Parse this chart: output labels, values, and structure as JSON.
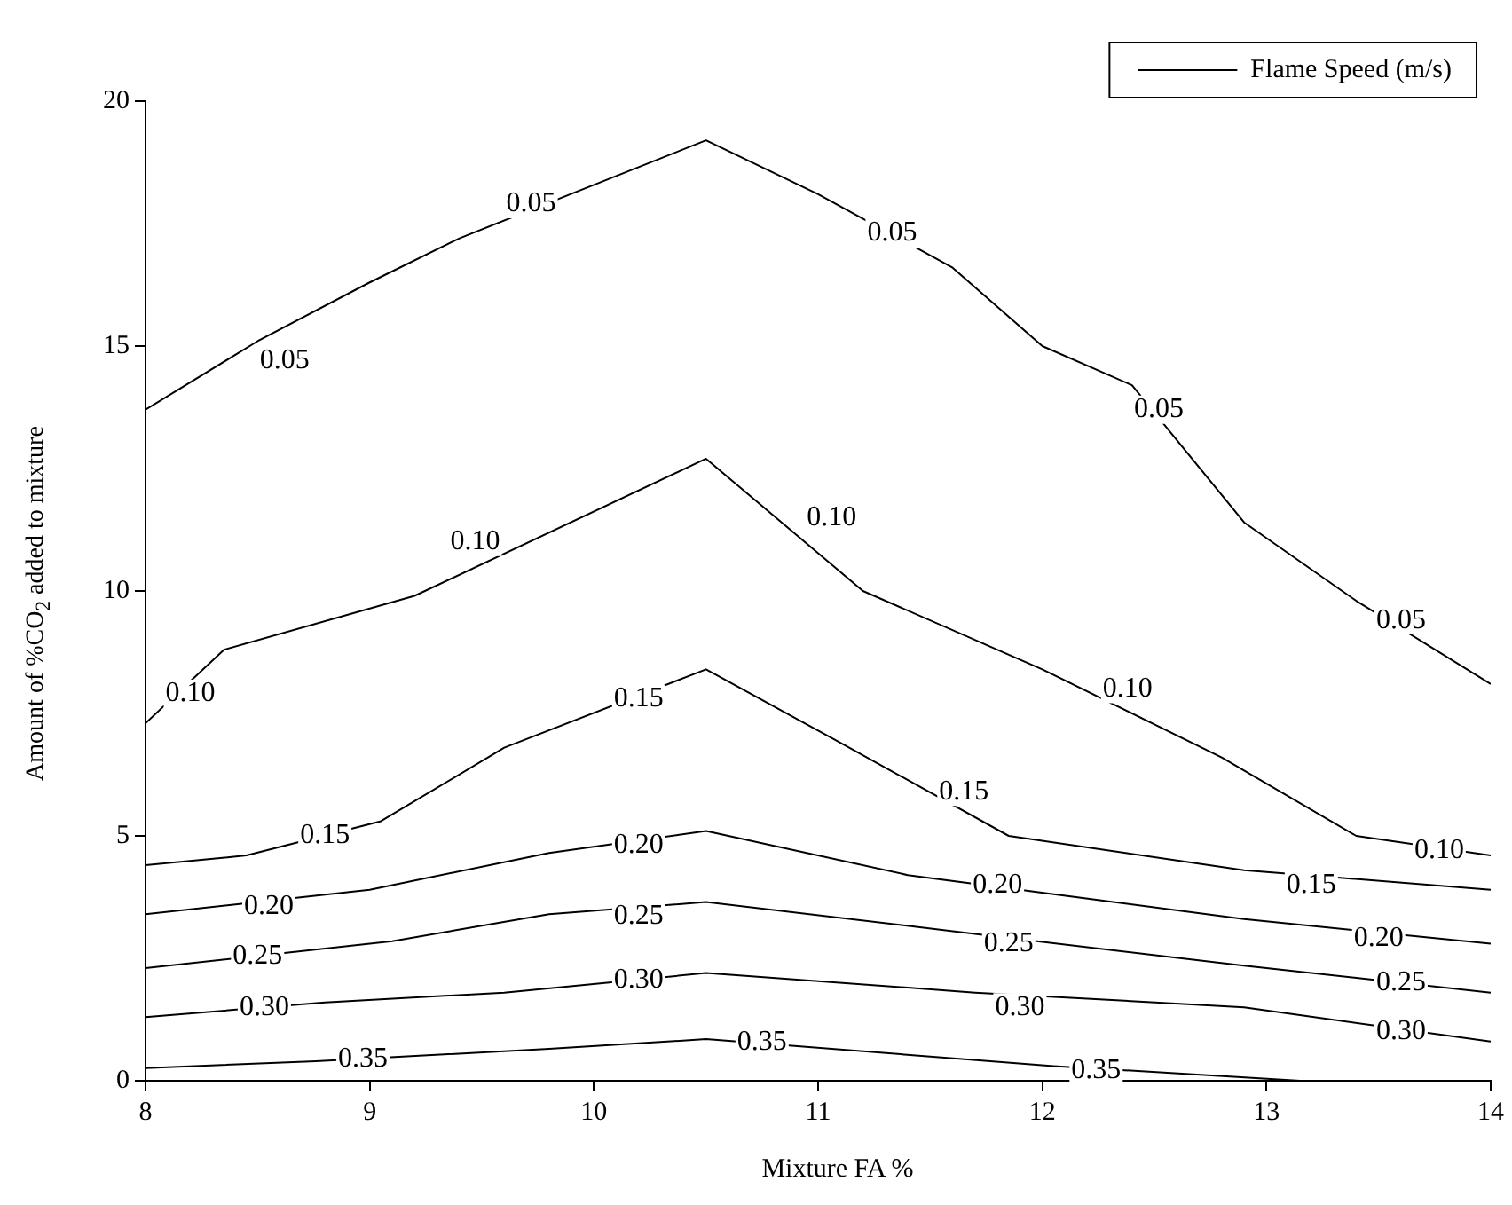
{
  "chart_data": {
    "type": "line",
    "xlabel": "Mixture FA %",
    "ylabel": "Amount of %CO$_{2}$ added to mixture",
    "legend": "top right",
    "grid": false,
    "marker": "none",
    "line_style": "solid",
    "xlim": [
      8,
      14
    ],
    "ylim": [
      0,
      20
    ],
    "xticks": [
      8,
      9,
      10,
      11,
      12,
      13,
      14
    ],
    "yticks": [
      0,
      5,
      10,
      15,
      20
    ],
    "series": [
      {
        "name": "Flame Speed (m/s)",
        "color": "#000000",
        "x": [
          8,
          8.5,
          9.0,
          9.4,
          10.5,
          11.0,
          11.6,
          12.0,
          12.4,
          12.9,
          13.4,
          14
        ],
        "values": [
          13.7,
          15.1,
          16.3,
          17.2,
          19.2,
          18.1,
          16.6,
          15.0,
          14.2,
          11.4,
          9.8,
          8.1
        ]
      },
      {
        "color": "#000000",
        "x": [
          8,
          8.35,
          9.2,
          10.5,
          11.2,
          12.0,
          12.8,
          13.4,
          14
        ],
        "values": [
          7.3,
          8.8,
          9.9,
          12.7,
          10.0,
          8.4,
          6.6,
          5.0,
          4.6
        ]
      },
      {
        "color": "#000000",
        "x": [
          8,
          8.45,
          9.05,
          9.6,
          10.5,
          11.06,
          11.85,
          12.9,
          14
        ],
        "values": [
          4.4,
          4.6,
          5.3,
          6.8,
          8.4,
          7.0,
          5.0,
          4.3,
          3.9
        ]
      },
      {
        "color": "#000000",
        "x": [
          8,
          9.0,
          9.8,
          10.5,
          11.4,
          12.9,
          14
        ],
        "values": [
          3.4,
          3.9,
          4.65,
          5.1,
          4.2,
          3.3,
          2.8
        ]
      },
      {
        "color": "#000000",
        "x": [
          8,
          9.1,
          9.8,
          10.5,
          11.7,
          12.9,
          14
        ],
        "values": [
          2.3,
          2.85,
          3.4,
          3.65,
          3.0,
          2.35,
          1.8
        ]
      },
      {
        "color": "#000000",
        "x": [
          8,
          8.8,
          9.6,
          10.5,
          11.7,
          12.9,
          14
        ],
        "values": [
          1.3,
          1.6,
          1.8,
          2.2,
          1.8,
          1.5,
          0.8
        ]
      },
      {
        "color": "#000000",
        "x": [
          8,
          8.76,
          9.8,
          10.5,
          12.05,
          13.15
        ],
        "values": [
          0.26,
          0.4,
          0.65,
          0.85,
          0.3,
          0
        ]
      }
    ],
    "annotations": [
      {
        "text": "0.05",
        "x": 8.62,
        "y": 14.7
      },
      {
        "text": "0.05",
        "x": 9.72,
        "y": 17.9
      },
      {
        "text": "0.05",
        "x": 11.33,
        "y": 17.3
      },
      {
        "text": "0.05",
        "x": 12.52,
        "y": 13.7
      },
      {
        "text": "0.05",
        "x": 13.6,
        "y": 9.4
      },
      {
        "text": "0.10",
        "x": 8.2,
        "y": 7.9
      },
      {
        "text": "0.10",
        "x": 9.47,
        "y": 11.0
      },
      {
        "text": "0.10",
        "x": 11.06,
        "y": 11.5
      },
      {
        "text": "0.10",
        "x": 12.38,
        "y": 8.0
      },
      {
        "text": "0.10",
        "x": 13.77,
        "y": 4.7
      },
      {
        "text": "0.15",
        "x": 8.8,
        "y": 5.0
      },
      {
        "text": "0.15",
        "x": 10.2,
        "y": 7.8
      },
      {
        "text": "0.15",
        "x": 11.65,
        "y": 5.9
      },
      {
        "text": "0.15",
        "x": 13.2,
        "y": 4.0
      },
      {
        "text": "0.20",
        "x": 8.55,
        "y": 3.55
      },
      {
        "text": "0.20",
        "x": 10.2,
        "y": 4.8
      },
      {
        "text": "0.20",
        "x": 11.8,
        "y": 4.0
      },
      {
        "text": "0.20",
        "x": 13.5,
        "y": 2.9
      },
      {
        "text": "0.25",
        "x": 8.5,
        "y": 2.55
      },
      {
        "text": "0.25",
        "x": 10.2,
        "y": 3.35
      },
      {
        "text": "0.25",
        "x": 11.85,
        "y": 2.8
      },
      {
        "text": "0.25",
        "x": 13.6,
        "y": 2.0
      },
      {
        "text": "0.30",
        "x": 8.53,
        "y": 1.5
      },
      {
        "text": "0.30",
        "x": 10.2,
        "y": 2.05
      },
      {
        "text": "0.30",
        "x": 11.9,
        "y": 1.5
      },
      {
        "text": "0.30",
        "x": 13.6,
        "y": 1.0
      },
      {
        "text": "0.35",
        "x": 8.97,
        "y": 0.45
      },
      {
        "text": "0.35",
        "x": 10.75,
        "y": 0.78
      },
      {
        "text": "0.35",
        "x": 12.24,
        "y": 0.2
      }
    ]
  }
}
